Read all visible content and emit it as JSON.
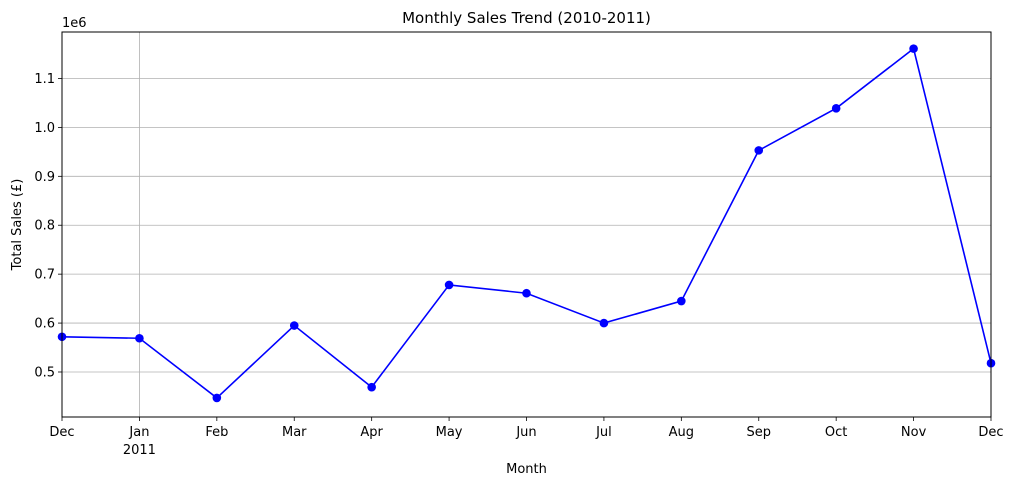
{
  "chart_data": {
    "type": "line",
    "title": "Monthly Sales Trend (2010-2011)",
    "xlabel": "Month",
    "ylabel": "Total Sales (£)",
    "y_offset_label": "1e6",
    "y_scale_factor": 1000000,
    "ylim": [
      0.408,
      1.195
    ],
    "yticks": [
      0.5,
      0.6,
      0.7,
      0.8,
      0.9,
      1.0,
      1.1
    ],
    "ytick_labels": [
      "0.5",
      "0.6",
      "0.7",
      "0.8",
      "0.9",
      "1.0",
      "1.1"
    ],
    "categories": [
      "Dec",
      "Jan",
      "Feb",
      "Mar",
      "Apr",
      "May",
      "Jun",
      "Jul",
      "Aug",
      "Sep",
      "Oct",
      "Nov",
      "Dec"
    ],
    "category_year_labels": [
      "",
      "2011",
      "",
      "",
      "",
      "",
      "",
      "",
      "",
      "",
      "",
      "",
      ""
    ],
    "x": [
      "2010-12",
      "2011-01",
      "2011-02",
      "2011-03",
      "2011-04",
      "2011-05",
      "2011-06",
      "2011-07",
      "2011-08",
      "2011-09",
      "2011-10",
      "2011-11",
      "2011-12"
    ],
    "series": [
      {
        "values": [
          572000,
          569000,
          447000,
          595000,
          469000,
          678000,
          661000,
          600000,
          645000,
          953000,
          1039000,
          1161000,
          518000
        ],
        "color": "#0000ff",
        "marker": "circle"
      }
    ],
    "grid": true,
    "vertical_grid_positions": [
      "2011-01"
    ]
  }
}
